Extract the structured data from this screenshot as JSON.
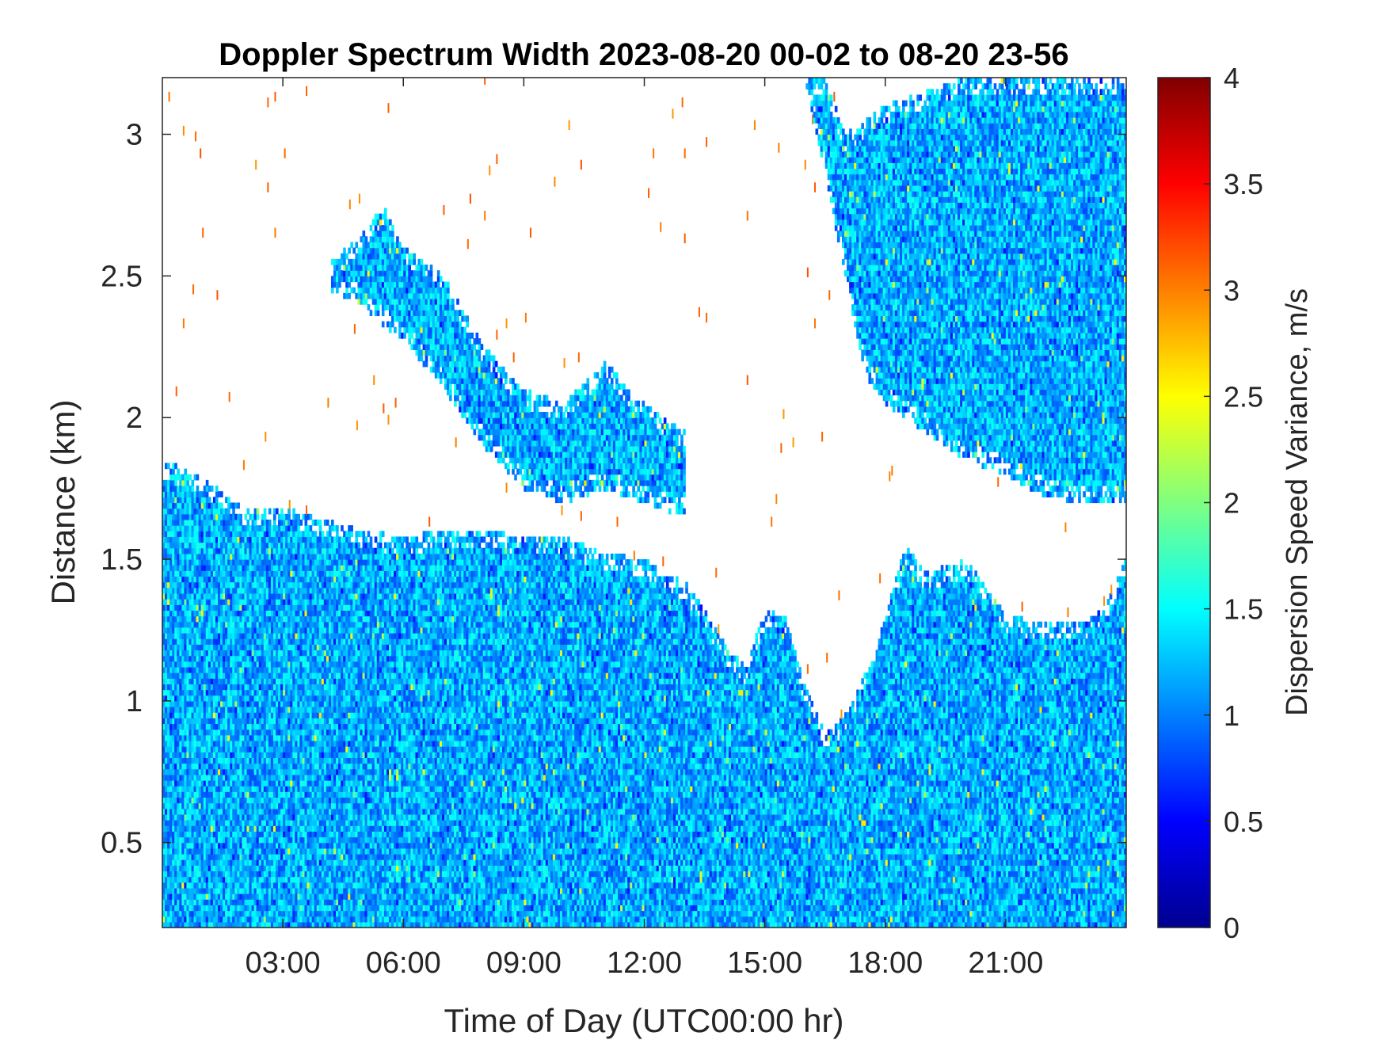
{
  "chart_data": {
    "type": "heatmap",
    "title": "Doppler Spectrum Width 2023-08-20 00-02 to 08-20 23-56",
    "xlabel": "Time of Day (UTC00:00 hr)",
    "ylabel": "Distance (km)",
    "xlim": [
      0.0,
      24.0
    ],
    "ylim": [
      0.2,
      3.2
    ],
    "x_ticks": [
      3,
      6,
      9,
      12,
      15,
      18,
      21
    ],
    "x_tick_labels": [
      "03:00",
      "06:00",
      "09:00",
      "12:00",
      "15:00",
      "18:00",
      "21:00"
    ],
    "y_ticks": [
      0.5,
      1,
      1.5,
      2,
      2.5,
      3
    ],
    "y_tick_labels": [
      "0.5",
      "1",
      "1.5",
      "2",
      "2.5",
      "3"
    ],
    "colorbar": {
      "label": "Dispersion Speed Variance, m/s",
      "colormap": "jet",
      "range": [
        0,
        4
      ],
      "ticks": [
        0,
        0.5,
        1,
        1.5,
        2,
        2.5,
        3,
        3.5,
        4
      ],
      "tick_labels": [
        "0",
        "0.5",
        "1",
        "1.5",
        "2",
        "2.5",
        "3",
        "3.5",
        "4"
      ]
    },
    "no_data_color": "#ffffff",
    "grid": false,
    "typical_value_range": [
      0.8,
      1.6
    ],
    "valid_data_regions": [
      {
        "name": "boundary layer",
        "times": [
          0,
          0.5,
          1,
          1.5,
          2,
          3,
          4,
          5,
          6,
          7,
          8,
          9,
          10,
          11,
          12,
          12.5,
          13,
          13.5,
          14,
          14.5,
          15,
          15.5,
          16,
          16.5,
          17,
          17.5,
          18,
          18.5,
          19,
          20,
          20.5,
          21,
          22,
          23,
          23.5,
          24
        ],
        "top_km": [
          1.85,
          1.82,
          1.78,
          1.74,
          1.68,
          1.69,
          1.64,
          1.6,
          1.58,
          1.6,
          1.6,
          1.58,
          1.58,
          1.52,
          1.5,
          1.45,
          1.42,
          1.32,
          1.2,
          1.12,
          1.32,
          1.3,
          1.05,
          0.88,
          0.95,
          1.1,
          1.3,
          1.55,
          1.45,
          1.5,
          1.4,
          1.3,
          1.28,
          1.28,
          1.35,
          1.5
        ]
      },
      {
        "name": "elevated aerosol layer",
        "times": [
          4.2,
          5,
          5.5,
          6,
          7,
          8,
          9,
          10,
          11,
          12,
          13
        ],
        "bottom_km": [
          2.45,
          2.4,
          2.32,
          2.28,
          2.1,
          1.9,
          1.75,
          1.7,
          1.75,
          1.7,
          1.65
        ],
        "top_km": [
          2.55,
          2.65,
          2.75,
          2.6,
          2.5,
          2.25,
          2.1,
          2.05,
          2.2,
          2.05,
          1.95
        ]
      },
      {
        "name": "upper cloud layer",
        "times": [
          16,
          16.5,
          17,
          17.5,
          18,
          19,
          20,
          21,
          22,
          23,
          24
        ],
        "bottom_km": [
          3.2,
          2.85,
          2.5,
          2.15,
          2.05,
          1.95,
          1.85,
          1.8,
          1.72,
          1.7,
          1.7
        ],
        "top_km": [
          3.2,
          3.2,
          3.0,
          3.05,
          3.1,
          3.15,
          3.2,
          3.2,
          3.2,
          3.2,
          3.2
        ]
      }
    ]
  }
}
